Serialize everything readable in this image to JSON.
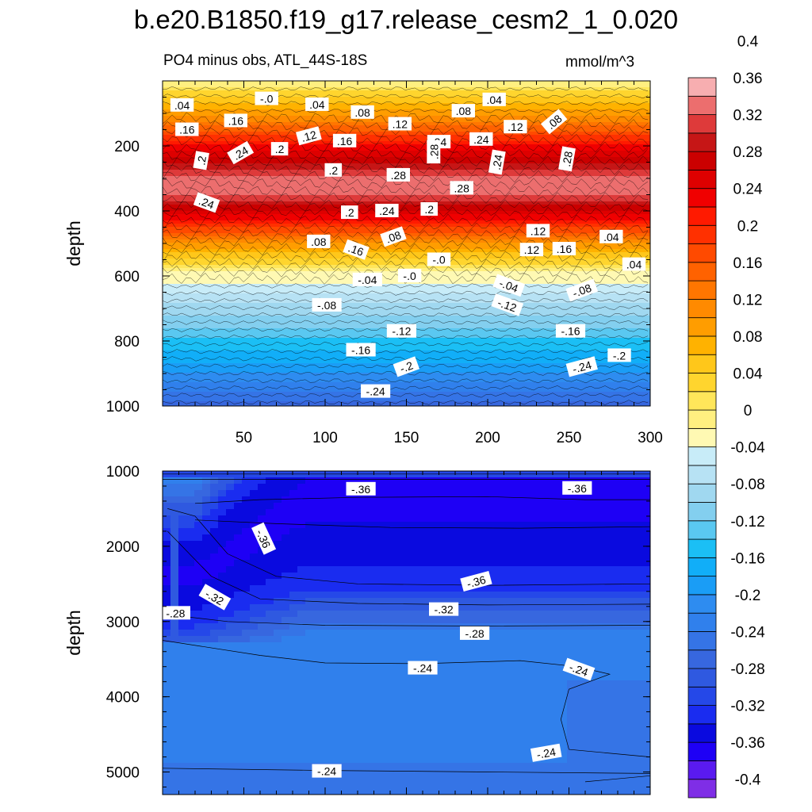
{
  "title": "b.e20.B1850.f19_g17.release_cesm2_1_0.020",
  "subtitle": "PO4 minus obs, ATL_44S-18S",
  "units": "mmol/m^3",
  "chart_data": {
    "type": "contour",
    "variable": "PO4 minus obs",
    "region": "ATL_44S-18S",
    "units": "mmol/m^3",
    "x_ticks": [
      "50",
      "100",
      "150",
      "200",
      "250",
      "300"
    ],
    "xlim": [
      0,
      300
    ],
    "colorbar": {
      "levels": [
        -0.42,
        -0.4,
        -0.38,
        -0.36,
        -0.34,
        -0.32,
        -0.3,
        -0.28,
        -0.26,
        -0.24,
        -0.22,
        -0.2,
        -0.18,
        -0.16,
        -0.14,
        -0.12,
        -0.1,
        -0.08,
        -0.06,
        -0.04,
        -0.02,
        0.0,
        0.02,
        0.04,
        0.06,
        0.08,
        0.1,
        0.12,
        0.14,
        0.16,
        0.18,
        0.2,
        0.22,
        0.24,
        0.26,
        0.28,
        0.3,
        0.32,
        0.34,
        0.36,
        0.38,
        0.4,
        0.42
      ],
      "colors": [
        "#7f2ee6",
        "#5a1af0",
        "#1e00f5",
        "#0a0adf",
        "#1a2cf0",
        "#2548e8",
        "#2f59e0",
        "#3767df",
        "#3574e6",
        "#3080ec",
        "#2e8cf0",
        "#1a9df6",
        "#11aef8",
        "#1bbff5",
        "#5ac8f1",
        "#83cfef",
        "#a0d8f0",
        "#b7e2f4",
        "#c8ecf8",
        "#fff9b3",
        "#ffef80",
        "#ffe65a",
        "#ffd52e",
        "#ffc71a",
        "#ffb200",
        "#ff9d00",
        "#ff8a00",
        "#ff7600",
        "#ff6200",
        "#ff4a00",
        "#ff3000",
        "#ff1a00",
        "#f00000",
        "#de0000",
        "#cb0000",
        "#c61616",
        "#de3a3a",
        "#ec6e6e",
        "#f7aeb0"
      ],
      "tick_labels": [
        "-0.4",
        "-0.36",
        "-0.32",
        "-0.28",
        "-0.24",
        "-0.2",
        "-0.16",
        "-0.12",
        "-0.08",
        "-0.04",
        "0",
        "0.04",
        "0.08",
        "0.12",
        "0.16",
        "0.2",
        "0.24",
        "0.28",
        "0.32",
        "0.36",
        "0.4"
      ]
    },
    "panels": [
      {
        "name": "upper",
        "ylabel": "depth",
        "ylim": [
          1000,
          0
        ],
        "y_ticks": [
          "200",
          "400",
          "600",
          "800",
          "1000"
        ],
        "layers": [
          {
            "depth": 0,
            "value": -0.02
          },
          {
            "depth": 40,
            "value": 0.03
          },
          {
            "depth": 110,
            "value": 0.1
          },
          {
            "depth": 200,
            "value": 0.22
          },
          {
            "depth": 270,
            "value": 0.3
          },
          {
            "depth": 320,
            "value": 0.34
          },
          {
            "depth": 350,
            "value": 0.32
          },
          {
            "depth": 430,
            "value": 0.22
          },
          {
            "depth": 500,
            "value": 0.1
          },
          {
            "depth": 570,
            "value": 0.01
          },
          {
            "depth": 590,
            "value": -0.02
          },
          {
            "depth": 700,
            "value": -0.09
          },
          {
            "depth": 850,
            "value": -0.17
          },
          {
            "depth": 1000,
            "value": -0.27
          }
        ],
        "contour_labels": [
          ".04",
          "-.0",
          ".04",
          ".08",
          ".08",
          ".04",
          ".12",
          ".08",
          ".16",
          ".16",
          ".12",
          ".16",
          ".12",
          ".24",
          ".24",
          ".2",
          ".24",
          ".2",
          ".2",
          ".28",
          ".28",
          ".28",
          ".24",
          ".28",
          ".24",
          ".2",
          ".24",
          ".2",
          ".12",
          ".08",
          ".16",
          ".08",
          ".12",
          ".16",
          ".04",
          "-.0",
          ".04",
          "-.04",
          "-.0",
          "-.04",
          "-.08",
          "-.08",
          "-.12",
          "-.12",
          "-.16",
          "-.16",
          "-.2",
          "-.2",
          "-.24",
          "-.24"
        ]
      },
      {
        "name": "lower",
        "ylabel": "depth",
        "ylim": [
          1000,
          5300
        ],
        "y_ticks": [
          "1000",
          "2000",
          "3000",
          "4000",
          "5000"
        ],
        "contour_labels": [
          "-.36",
          "-.36",
          "-.36",
          "-.36",
          "-.32",
          "-.32",
          "-.28",
          "-.28",
          "-.24",
          "-.24",
          "-.24",
          "-.24"
        ]
      }
    ]
  }
}
